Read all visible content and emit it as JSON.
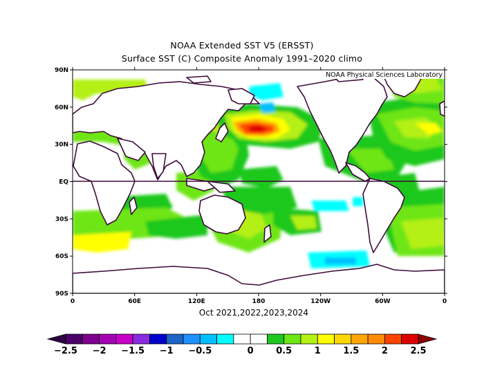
{
  "header": {
    "title": "NOAA Extended SST V5 (ERSST)",
    "subtitle": "Surface SST (C) Composite Anomaly 1991–2020 climo"
  },
  "map": {
    "credit": "NOAA Physical Sciences Laboratory",
    "period": "Oct 2021,2022,2023,2024",
    "lat_labels": [
      "90N",
      "60N",
      "30N",
      "EQ",
      "30S",
      "60S",
      "90S"
    ],
    "lon_labels": [
      "0",
      "60E",
      "120E",
      "180",
      "120W",
      "60W",
      "0"
    ]
  },
  "colorbar": {
    "labels": [
      "−2.5",
      "−2",
      "−1.5",
      "−1",
      "−0.5",
      "0",
      "0.5",
      "1",
      "1.5",
      "2",
      "2.5"
    ],
    "colors": [
      "#4a0068",
      "#7f0090",
      "#a400b4",
      "#c800c8",
      "#8a2be2",
      "#0000cd",
      "#1e64c8",
      "#1e90ff",
      "#00bfff",
      "#00ffff",
      "#ffffff",
      "#ffffff",
      "#1ec81e",
      "#6ee614",
      "#b4f014",
      "#ffff00",
      "#ffd700",
      "#ffa500",
      "#ff8c00",
      "#ff4500",
      "#dc0000"
    ],
    "under_color": "#2d0045",
    "over_color": "#8b0000"
  }
}
